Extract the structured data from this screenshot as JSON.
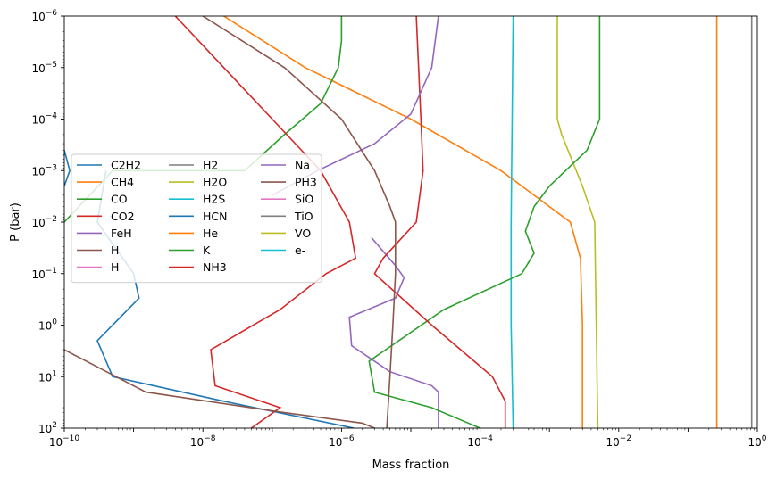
{
  "chart_data": {
    "type": "line",
    "xlabel": "Mass fraction",
    "ylabel": "P (bar)",
    "xscale": "log",
    "yscale": "log",
    "yaxis_inverted": true,
    "xlim": [
      1e-10,
      1
    ],
    "ylim": [
      100,
      1e-06
    ],
    "x_ticks": [
      {
        "value": 1e-10,
        "base": "10",
        "exp": "−10"
      },
      {
        "value": 1e-08,
        "base": "10",
        "exp": "−8"
      },
      {
        "value": 1e-06,
        "base": "10",
        "exp": "−6"
      },
      {
        "value": 0.0001,
        "base": "10",
        "exp": "−4"
      },
      {
        "value": 0.01,
        "base": "10",
        "exp": "−2"
      },
      {
        "value": 1,
        "base": "10",
        "exp": "0"
      }
    ],
    "y_ticks": [
      {
        "value": 1e-06,
        "base": "10",
        "exp": "−6"
      },
      {
        "value": 1e-05,
        "base": "10",
        "exp": "−5"
      },
      {
        "value": 0.0001,
        "base": "10",
        "exp": "−4"
      },
      {
        "value": 0.001,
        "base": "10",
        "exp": "−3"
      },
      {
        "value": 0.01,
        "base": "10",
        "exp": "−2"
      },
      {
        "value": 0.1,
        "base": "10",
        "exp": "−1"
      },
      {
        "value": 1,
        "base": "10",
        "exp": "0"
      },
      {
        "value": 10,
        "base": "10",
        "exp": "1"
      },
      {
        "value": 100,
        "base": "10",
        "exp": "2"
      }
    ],
    "grid": false,
    "legend": {
      "location": "center-left",
      "columns": 3
    },
    "series": [
      {
        "name": "C2H2",
        "color": "#1f77b4",
        "points": [
          [
            4e-10,
            0.001
          ],
          [
            3e-10,
            0.01
          ],
          [
            1e-09,
            0.1
          ],
          [
            1.2e-09,
            0.3
          ],
          [
            3e-10,
            2
          ],
          [
            5e-10,
            10
          ],
          [
            2e-08,
            30
          ],
          [
            1.5e-06,
            100
          ]
        ]
      },
      {
        "name": "CH4",
        "color": "#ff7f0e",
        "points": [
          [
            2e-08,
            1e-06
          ],
          [
            3e-07,
            1e-05
          ],
          [
            1e-05,
            0.0001
          ],
          [
            0.0002,
            0.001
          ],
          [
            0.0004,
            0.002
          ],
          [
            0.002,
            0.01
          ],
          [
            0.0028,
            0.05
          ],
          [
            0.003,
            1
          ],
          [
            0.003,
            100
          ]
        ]
      },
      {
        "name": "CO",
        "color": "#2ca02c",
        "points": [
          [
            1e-10,
            0.01
          ],
          [
            5e-10,
            0.001
          ],
          [
            1e-08,
            0.001
          ],
          [
            4e-08,
            0.001
          ],
          [
            1.5e-07,
            0.0002
          ],
          [
            5e-07,
            5e-05
          ],
          [
            9e-07,
            1e-05
          ],
          [
            1e-06,
            3e-06
          ],
          [
            1e-06,
            1e-06
          ]
        ]
      },
      {
        "name": "CO2",
        "color": "#d62728",
        "points": [
          [
            4e-09,
            1e-06
          ],
          [
            2e-08,
            1e-05
          ],
          [
            1e-07,
            0.0001
          ],
          [
            5e-07,
            0.001
          ],
          [
            1.3e-06,
            0.01
          ],
          [
            1.6e-06,
            0.05
          ],
          [
            6e-07,
            0.1
          ],
          [
            1.3e-07,
            0.5
          ],
          [
            1.3e-08,
            3
          ],
          [
            1.5e-08,
            15
          ],
          [
            1.3e-07,
            40
          ],
          [
            5e-08,
            100
          ]
        ]
      },
      {
        "name": "FeH",
        "color": "#9467bd",
        "points": [
          [
            2.7e-06,
            0.02
          ],
          [
            6e-06,
            0.07
          ],
          [
            8e-06,
            0.12
          ],
          [
            6e-06,
            0.3
          ],
          [
            1.3e-06,
            0.7
          ],
          [
            1.4e-06,
            2.5
          ],
          [
            5e-06,
            8
          ],
          [
            2e-05,
            15
          ],
          [
            2.5e-05,
            20
          ],
          [
            2.5e-05,
            100
          ]
        ]
      },
      {
        "name": "H",
        "color": "#8c564b",
        "points": [
          [
            1e-10,
            3
          ],
          [
            1.5e-09,
            20
          ],
          [
            1.5e-07,
            50
          ],
          [
            2e-06,
            80
          ],
          [
            3e-06,
            100
          ]
        ]
      },
      {
        "name": "H-",
        "color": "#e377c2",
        "points": []
      },
      {
        "name": "H2",
        "color": "#7f7f7f",
        "points": [
          [
            0.83,
            1e-06
          ],
          [
            0.83,
            100
          ]
        ]
      },
      {
        "name": "H2O",
        "color": "#bcbd22",
        "points": [
          [
            0.0013,
            1e-06
          ],
          [
            0.0013,
            0.0001
          ],
          [
            0.0015,
            0.0002
          ],
          [
            0.003,
            0.002
          ],
          [
            0.0045,
            0.01
          ],
          [
            0.005,
            100
          ]
        ]
      },
      {
        "name": "H2S",
        "color": "#17becf",
        "points": [
          [
            0.0003,
            1e-06
          ],
          [
            0.00028,
            0.01
          ],
          [
            0.00028,
            1
          ],
          [
            0.0003,
            100
          ]
        ]
      },
      {
        "name": "HCN",
        "color": "#1f77b4",
        "points": [
          [
            1e-10,
            0.0004
          ],
          [
            1.2e-10,
            0.001
          ],
          [
            1e-10,
            0.002
          ]
        ]
      },
      {
        "name": "He",
        "color": "#ff7f0e",
        "points": [
          [
            0.26,
            1e-06
          ],
          [
            0.26,
            100
          ]
        ]
      },
      {
        "name": "K",
        "color": "#2ca02c",
        "points": [
          [
            0.0053,
            1e-06
          ],
          [
            0.0053,
            0.0001
          ],
          [
            0.0035,
            0.0004
          ],
          [
            0.001,
            0.002
          ],
          [
            0.0006,
            0.005
          ],
          [
            0.00045,
            0.015
          ],
          [
            0.0006,
            0.04
          ],
          [
            0.0004,
            0.1
          ],
          [
            3e-05,
            0.5
          ],
          [
            2.5e-06,
            5
          ],
          [
            3e-06,
            20
          ],
          [
            2e-05,
            40
          ],
          [
            0.0001,
            100
          ]
        ]
      },
      {
        "name": "NH3",
        "color": "#d62728",
        "points": [
          [
            1.2e-05,
            1e-06
          ],
          [
            1.4e-05,
            0.0001
          ],
          [
            1.5e-05,
            0.001
          ],
          [
            1.2e-05,
            0.01
          ],
          [
            4e-06,
            0.05
          ],
          [
            3e-06,
            0.1
          ],
          [
            2e-05,
            1
          ],
          [
            0.00015,
            10
          ],
          [
            0.00023,
            30
          ],
          [
            0.00023,
            100
          ]
        ]
      },
      {
        "name": "Na",
        "color": "#9467bd",
        "points": [
          [
            2.5e-05,
            1e-06
          ],
          [
            2e-05,
            1e-05
          ],
          [
            1e-05,
            8e-05
          ],
          [
            3e-06,
            0.0003
          ],
          [
            4.5e-07,
            0.001
          ],
          [
            1e-07,
            0.003
          ]
        ]
      },
      {
        "name": "PH3",
        "color": "#8c564b",
        "points": [
          [
            1e-08,
            1e-06
          ],
          [
            1.5e-07,
            1e-05
          ],
          [
            1e-06,
            0.0001
          ],
          [
            3e-06,
            0.001
          ],
          [
            5e-06,
            0.005
          ],
          [
            6e-06,
            0.01
          ],
          [
            6e-06,
            0.1
          ],
          [
            5.5e-06,
            1
          ],
          [
            5e-06,
            10
          ],
          [
            4.5e-06,
            100
          ]
        ]
      },
      {
        "name": "SiO",
        "color": "#e377c2",
        "points": []
      },
      {
        "name": "TiO",
        "color": "#7f7f7f",
        "points": []
      },
      {
        "name": "VO",
        "color": "#bcbd22",
        "points": []
      },
      {
        "name": "e-",
        "color": "#17becf",
        "points": []
      }
    ]
  }
}
